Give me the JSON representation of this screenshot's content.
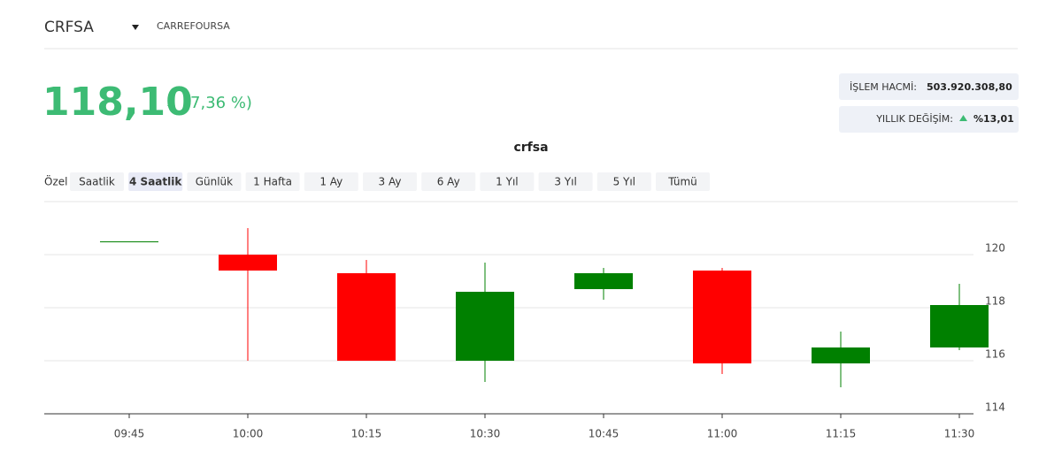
{
  "header": {
    "symbol": "CRFSA",
    "name": "CARREFOURSA",
    "price": "118,10",
    "change": "(7,36 %)",
    "volume_label": "İŞLEM HACMİ:",
    "volume_value": "503.920.308,80",
    "yearly_label": "YILLIK DEĞİŞİM:",
    "yearly_value": "%13,01"
  },
  "range_selector": {
    "label": "Özel",
    "options": [
      "Saatlik",
      "4 Saatlik",
      "Günlük",
      "1 Hafta",
      "1 Ay",
      "3 Ay",
      "6 Ay",
      "1 Yıl",
      "3 Yıl",
      "5 Yıl",
      "Tümü"
    ],
    "active": 1
  },
  "chart_data": {
    "type": "candlestick",
    "title": "crfsa",
    "categories": [
      "09:45",
      "10:00",
      "10:15",
      "10:30",
      "10:45",
      "11:00",
      "11:15",
      "11:30"
    ],
    "open": [
      120.5,
      120.0,
      119.3,
      116.0,
      118.7,
      119.4,
      115.9,
      116.5
    ],
    "high": [
      120.5,
      121.0,
      119.8,
      119.7,
      119.5,
      119.5,
      117.1,
      118.9
    ],
    "low": [
      120.5,
      116.0,
      116.0,
      115.2,
      118.3,
      115.5,
      115.0,
      116.4
    ],
    "close": [
      120.5,
      119.4,
      116.0,
      118.6,
      119.3,
      115.9,
      116.5,
      118.1
    ],
    "up_color": "#008000",
    "down_color": "#ff0000",
    "ylim": [
      114,
      121.6
    ],
    "yticks": [
      114,
      116,
      118,
      120
    ],
    "grid": true
  }
}
